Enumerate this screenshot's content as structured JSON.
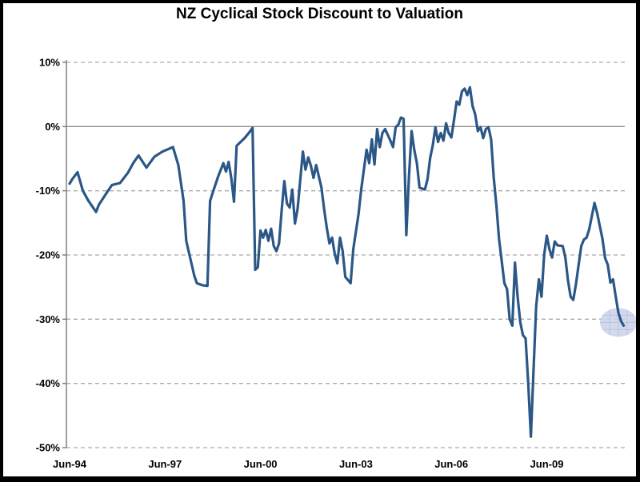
{
  "title": "NZ Cyclical Stock Discount to Valuation",
  "chart_data": {
    "type": "line",
    "title": "NZ Cyclical Stock Discount to Valuation",
    "xlabel": "",
    "ylabel": "",
    "x_unit": "months since Jun-1994, monthly data Jun-94 to late 2011",
    "x_tick_labels": [
      "Jun-94",
      "Jun-97",
      "Jun-00",
      "Jun-03",
      "Jun-06",
      "Jun-09"
    ],
    "x_tick_interval_months": 36,
    "y_ticks": [
      10,
      0,
      -10,
      -20,
      -30,
      -40,
      -50
    ],
    "y_tick_labels": [
      "10%",
      "0%",
      "-10%",
      "-20%",
      "-30%",
      "-40%",
      "-50%"
    ],
    "ylim": [
      -50,
      10
    ],
    "grid": "horizontal dashed gridlines, solid line at 0%",
    "legend": "none",
    "line_color": "#2b5787",
    "axis_color": "#808080",
    "gridline_color": "#ababab",
    "zero_line_color": "#909090",
    "series_name": "NZ cyclical stock discount to valuation (%)",
    "points": [
      [
        0,
        -8.9
      ],
      [
        1,
        -8.2
      ],
      [
        3,
        -7.1
      ],
      [
        5,
        -10.0
      ],
      [
        7,
        -11.5
      ],
      [
        10,
        -13.3
      ],
      [
        11,
        -12.2
      ],
      [
        14,
        -10.3
      ],
      [
        16,
        -9.1
      ],
      [
        19,
        -8.8
      ],
      [
        22,
        -7.2
      ],
      [
        24,
        -5.7
      ],
      [
        26,
        -4.5
      ],
      [
        29,
        -6.4
      ],
      [
        32,
        -4.7
      ],
      [
        35,
        -3.9
      ],
      [
        39,
        -3.2
      ],
      [
        41,
        -6.0
      ],
      [
        43,
        -11.6
      ],
      [
        44,
        -17.8
      ],
      [
        47,
        -23.2
      ],
      [
        48,
        -24.4
      ],
      [
        50,
        -24.7
      ],
      [
        52,
        -24.8
      ],
      [
        53,
        -11.6
      ],
      [
        54,
        -10.3
      ],
      [
        56,
        -7.8
      ],
      [
        58,
        -5.7
      ],
      [
        59,
        -7.0
      ],
      [
        60,
        -5.5
      ],
      [
        61,
        -8.0
      ],
      [
        62,
        -11.7
      ],
      [
        63,
        -3.0
      ],
      [
        66,
        -1.8
      ],
      [
        68,
        -0.8
      ],
      [
        69,
        -0.2
      ],
      [
        70,
        -22.3
      ],
      [
        71,
        -21.9
      ],
      [
        72,
        -16.2
      ],
      [
        73,
        -17.3
      ],
      [
        74,
        -16.1
      ],
      [
        75,
        -17.8
      ],
      [
        76,
        -15.9
      ],
      [
        77,
        -18.6
      ],
      [
        78,
        -19.4
      ],
      [
        79,
        -18.2
      ],
      [
        80,
        -13.0
      ],
      [
        81,
        -8.5
      ],
      [
        82,
        -12.0
      ],
      [
        83,
        -12.6
      ],
      [
        84,
        -9.8
      ],
      [
        85,
        -15.1
      ],
      [
        86,
        -12.8
      ],
      [
        88,
        -3.9
      ],
      [
        89,
        -6.7
      ],
      [
        90,
        -4.8
      ],
      [
        91,
        -6.1
      ],
      [
        92,
        -8.0
      ],
      [
        93,
        -6.0
      ],
      [
        95,
        -9.5
      ],
      [
        96,
        -12.8
      ],
      [
        97,
        -15.7
      ],
      [
        98,
        -18.2
      ],
      [
        99,
        -17.3
      ],
      [
        100,
        -19.8
      ],
      [
        101,
        -21.3
      ],
      [
        102,
        -17.3
      ],
      [
        103,
        -19.4
      ],
      [
        104,
        -23.4
      ],
      [
        106,
        -24.4
      ],
      [
        107,
        -19.1
      ],
      [
        109,
        -13.6
      ],
      [
        110,
        -9.8
      ],
      [
        112,
        -3.6
      ],
      [
        113,
        -5.7
      ],
      [
        114,
        -2.0
      ],
      [
        115,
        -5.9
      ],
      [
        116,
        -0.4
      ],
      [
        117,
        -3.2
      ],
      [
        118,
        -1.0
      ],
      [
        119,
        -0.4
      ],
      [
        121,
        -2.2
      ],
      [
        122,
        -3.2
      ],
      [
        123,
        -0.1
      ],
      [
        124,
        0.3
      ],
      [
        125,
        1.4
      ],
      [
        126,
        1.2
      ],
      [
        127,
        -16.9
      ],
      [
        128,
        -7.8
      ],
      [
        129,
        -0.7
      ],
      [
        130,
        -3.6
      ],
      [
        131,
        -5.7
      ],
      [
        132,
        -9.5
      ],
      [
        134,
        -9.8
      ],
      [
        135,
        -8.2
      ],
      [
        136,
        -4.9
      ],
      [
        137,
        -2.9
      ],
      [
        138,
        -0.1
      ],
      [
        139,
        -2.4
      ],
      [
        140,
        -1.0
      ],
      [
        141,
        -2.2
      ],
      [
        142,
        0.5
      ],
      [
        143,
        -1.0
      ],
      [
        144,
        -1.7
      ],
      [
        145,
        1.0
      ],
      [
        146,
        3.9
      ],
      [
        147,
        3.4
      ],
      [
        148,
        5.5
      ],
      [
        149,
        5.9
      ],
      [
        150,
        4.9
      ],
      [
        151,
        6.1
      ],
      [
        152,
        3.2
      ],
      [
        153,
        1.9
      ],
      [
        154,
        -0.7
      ],
      [
        155,
        -0.1
      ],
      [
        156,
        -1.8
      ],
      [
        157,
        -0.4
      ],
      [
        158,
        -0.1
      ],
      [
        159,
        -2.0
      ],
      [
        160,
        -8.0
      ],
      [
        161,
        -12.3
      ],
      [
        162,
        -17.5
      ],
      [
        163,
        -21.0
      ],
      [
        164,
        -24.4
      ],
      [
        165,
        -25.3
      ],
      [
        166,
        -30.0
      ],
      [
        167,
        -31.0
      ],
      [
        168,
        -21.2
      ],
      [
        169,
        -26.5
      ],
      [
        170,
        -30.5
      ],
      [
        171,
        -32.5
      ],
      [
        172,
        -33.0
      ],
      [
        173,
        -40.0
      ],
      [
        174,
        -48.3
      ],
      [
        175,
        -38.0
      ],
      [
        176,
        -28.0
      ],
      [
        177,
        -23.8
      ],
      [
        178,
        -26.5
      ],
      [
        179,
        -20.0
      ],
      [
        180,
        -17.0
      ],
      [
        181,
        -19.1
      ],
      [
        182,
        -20.4
      ],
      [
        183,
        -17.9
      ],
      [
        184,
        -18.5
      ],
      [
        186,
        -18.6
      ],
      [
        187,
        -20.4
      ],
      [
        188,
        -24.0
      ],
      [
        189,
        -26.5
      ],
      [
        190,
        -27.0
      ],
      [
        191,
        -24.5
      ],
      [
        192,
        -21.5
      ],
      [
        193,
        -18.6
      ],
      [
        194,
        -17.6
      ],
      [
        195,
        -17.3
      ],
      [
        196,
        -16.0
      ],
      [
        198,
        -11.9
      ],
      [
        199,
        -13.5
      ],
      [
        200,
        -15.5
      ],
      [
        201,
        -17.5
      ],
      [
        202,
        -20.5
      ],
      [
        203,
        -21.5
      ],
      [
        204,
        -24.3
      ],
      [
        205,
        -23.8
      ],
      [
        206,
        -26.5
      ],
      [
        207,
        -29.0
      ],
      [
        208,
        -30.3
      ],
      [
        209,
        -31.0
      ]
    ],
    "annotations": [
      {
        "type": "highlight-ellipse",
        "note": "translucent pale-blue highlighter blob circling the final data point",
        "center_month": 207,
        "center_value": -30.5,
        "fill": "#c9d4e9",
        "grid_stroke": "#beb5dc"
      }
    ]
  }
}
